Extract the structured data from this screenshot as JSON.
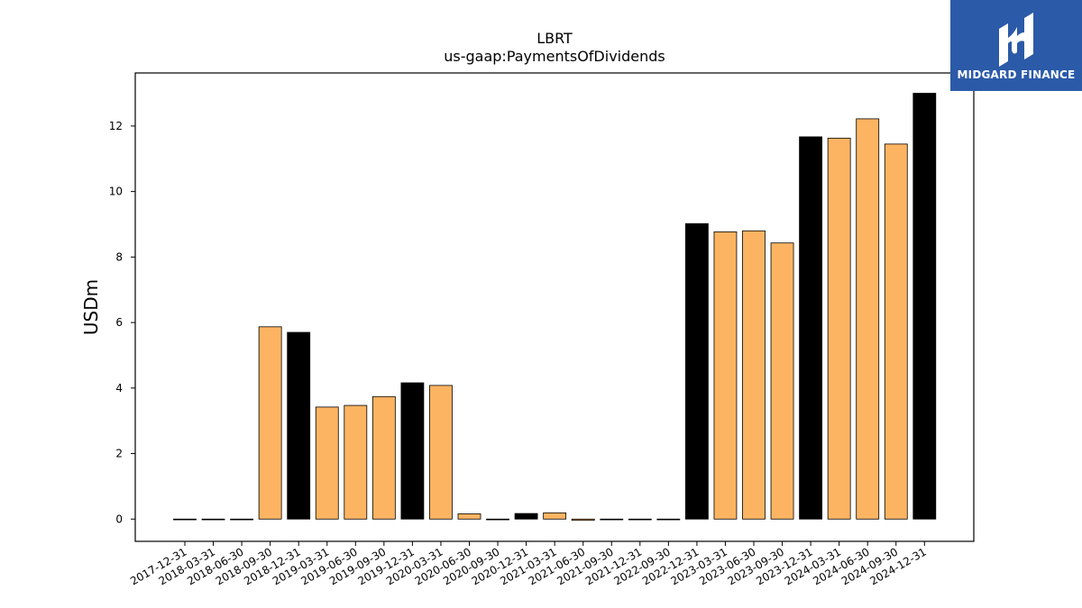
{
  "chart_data": {
    "type": "bar",
    "title": "LBRT",
    "subtitle": "us-gaap:PaymentsOfDividends",
    "xlabel": "",
    "ylabel": "USDm",
    "ylim": [
      -0.68,
      13.62
    ],
    "yticks": [
      0,
      2,
      4,
      6,
      8,
      10,
      12
    ],
    "grid": false,
    "colors": {
      "quarter": "#fdb462",
      "year_end": "#000000",
      "edge": "#000000"
    },
    "categories": [
      "2017-12-31",
      "2018-03-31",
      "2018-06-30",
      "2018-09-30",
      "2018-12-31",
      "2019-03-31",
      "2019-06-30",
      "2019-09-30",
      "2019-12-31",
      "2020-03-31",
      "2020-06-30",
      "2020-09-30",
      "2020-12-31",
      "2021-03-31",
      "2021-06-30",
      "2021-09-30",
      "2021-12-31",
      "2022-09-30",
      "2022-12-31",
      "2023-03-31",
      "2023-06-30",
      "2023-09-30",
      "2023-12-31",
      "2024-03-31",
      "2024-06-30",
      "2024-09-30",
      "2024-12-31"
    ],
    "values": [
      0,
      0,
      0,
      5.87,
      5.7,
      3.42,
      3.47,
      3.74,
      4.16,
      4.08,
      0.16,
      0,
      0.17,
      0.19,
      -0.04,
      0,
      0,
      0,
      9.02,
      8.77,
      8.8,
      8.43,
      11.67,
      11.63,
      12.22,
      11.45,
      13.0
    ]
  },
  "logo": {
    "text": "MIDGARD FINANCE",
    "icon": "midgard-logo-icon"
  }
}
